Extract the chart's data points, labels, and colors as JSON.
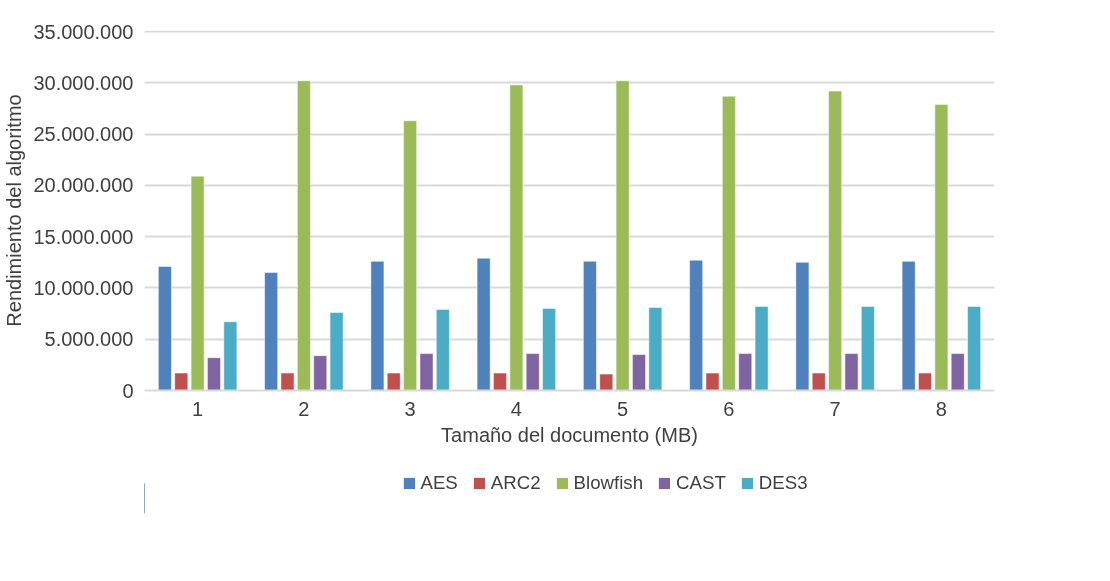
{
  "chart_data": {
    "type": "bar",
    "xlabel": "Tamaño del documento (MB)",
    "ylabel": "Rendimiento del algoritmo",
    "categories": [
      "1",
      "2",
      "3",
      "4",
      "5",
      "6",
      "7",
      "8"
    ],
    "series": [
      {
        "name": "AES",
        "color": "#4f81bd",
        "values": [
          12100000,
          11500000,
          12600000,
          12900000,
          12600000,
          12700000,
          12500000,
          12600000
        ]
      },
      {
        "name": "ARC2",
        "color": "#c0504d",
        "values": [
          1700000,
          1700000,
          1700000,
          1700000,
          1600000,
          1700000,
          1700000,
          1700000
        ]
      },
      {
        "name": "Blowfish",
        "color": "#9bbb59",
        "values": [
          20900000,
          30200000,
          26300000,
          29800000,
          30200000,
          28700000,
          29200000,
          27900000
        ]
      },
      {
        "name": "CAST",
        "color": "#8064a2",
        "values": [
          3200000,
          3400000,
          3600000,
          3600000,
          3500000,
          3600000,
          3600000,
          3600000
        ]
      },
      {
        "name": "DES3",
        "color": "#4bacc6",
        "values": [
          6700000,
          7600000,
          7900000,
          8000000,
          8100000,
          8200000,
          8200000,
          8200000
        ]
      }
    ],
    "ylim": [
      0,
      35000000
    ],
    "yticks": [
      {
        "value": 0,
        "label": "0"
      },
      {
        "value": 5000000,
        "label": "5.000.000"
      },
      {
        "value": 10000000,
        "label": "10.000.000"
      },
      {
        "value": 15000000,
        "label": "15.000.000"
      },
      {
        "value": 20000000,
        "label": "20.000.000"
      },
      {
        "value": 25000000,
        "label": "25.000.000"
      },
      {
        "value": 30000000,
        "label": "30.000.000"
      },
      {
        "value": 35000000,
        "label": "35.000.000"
      }
    ],
    "grid": "y",
    "legend": "bottom"
  }
}
